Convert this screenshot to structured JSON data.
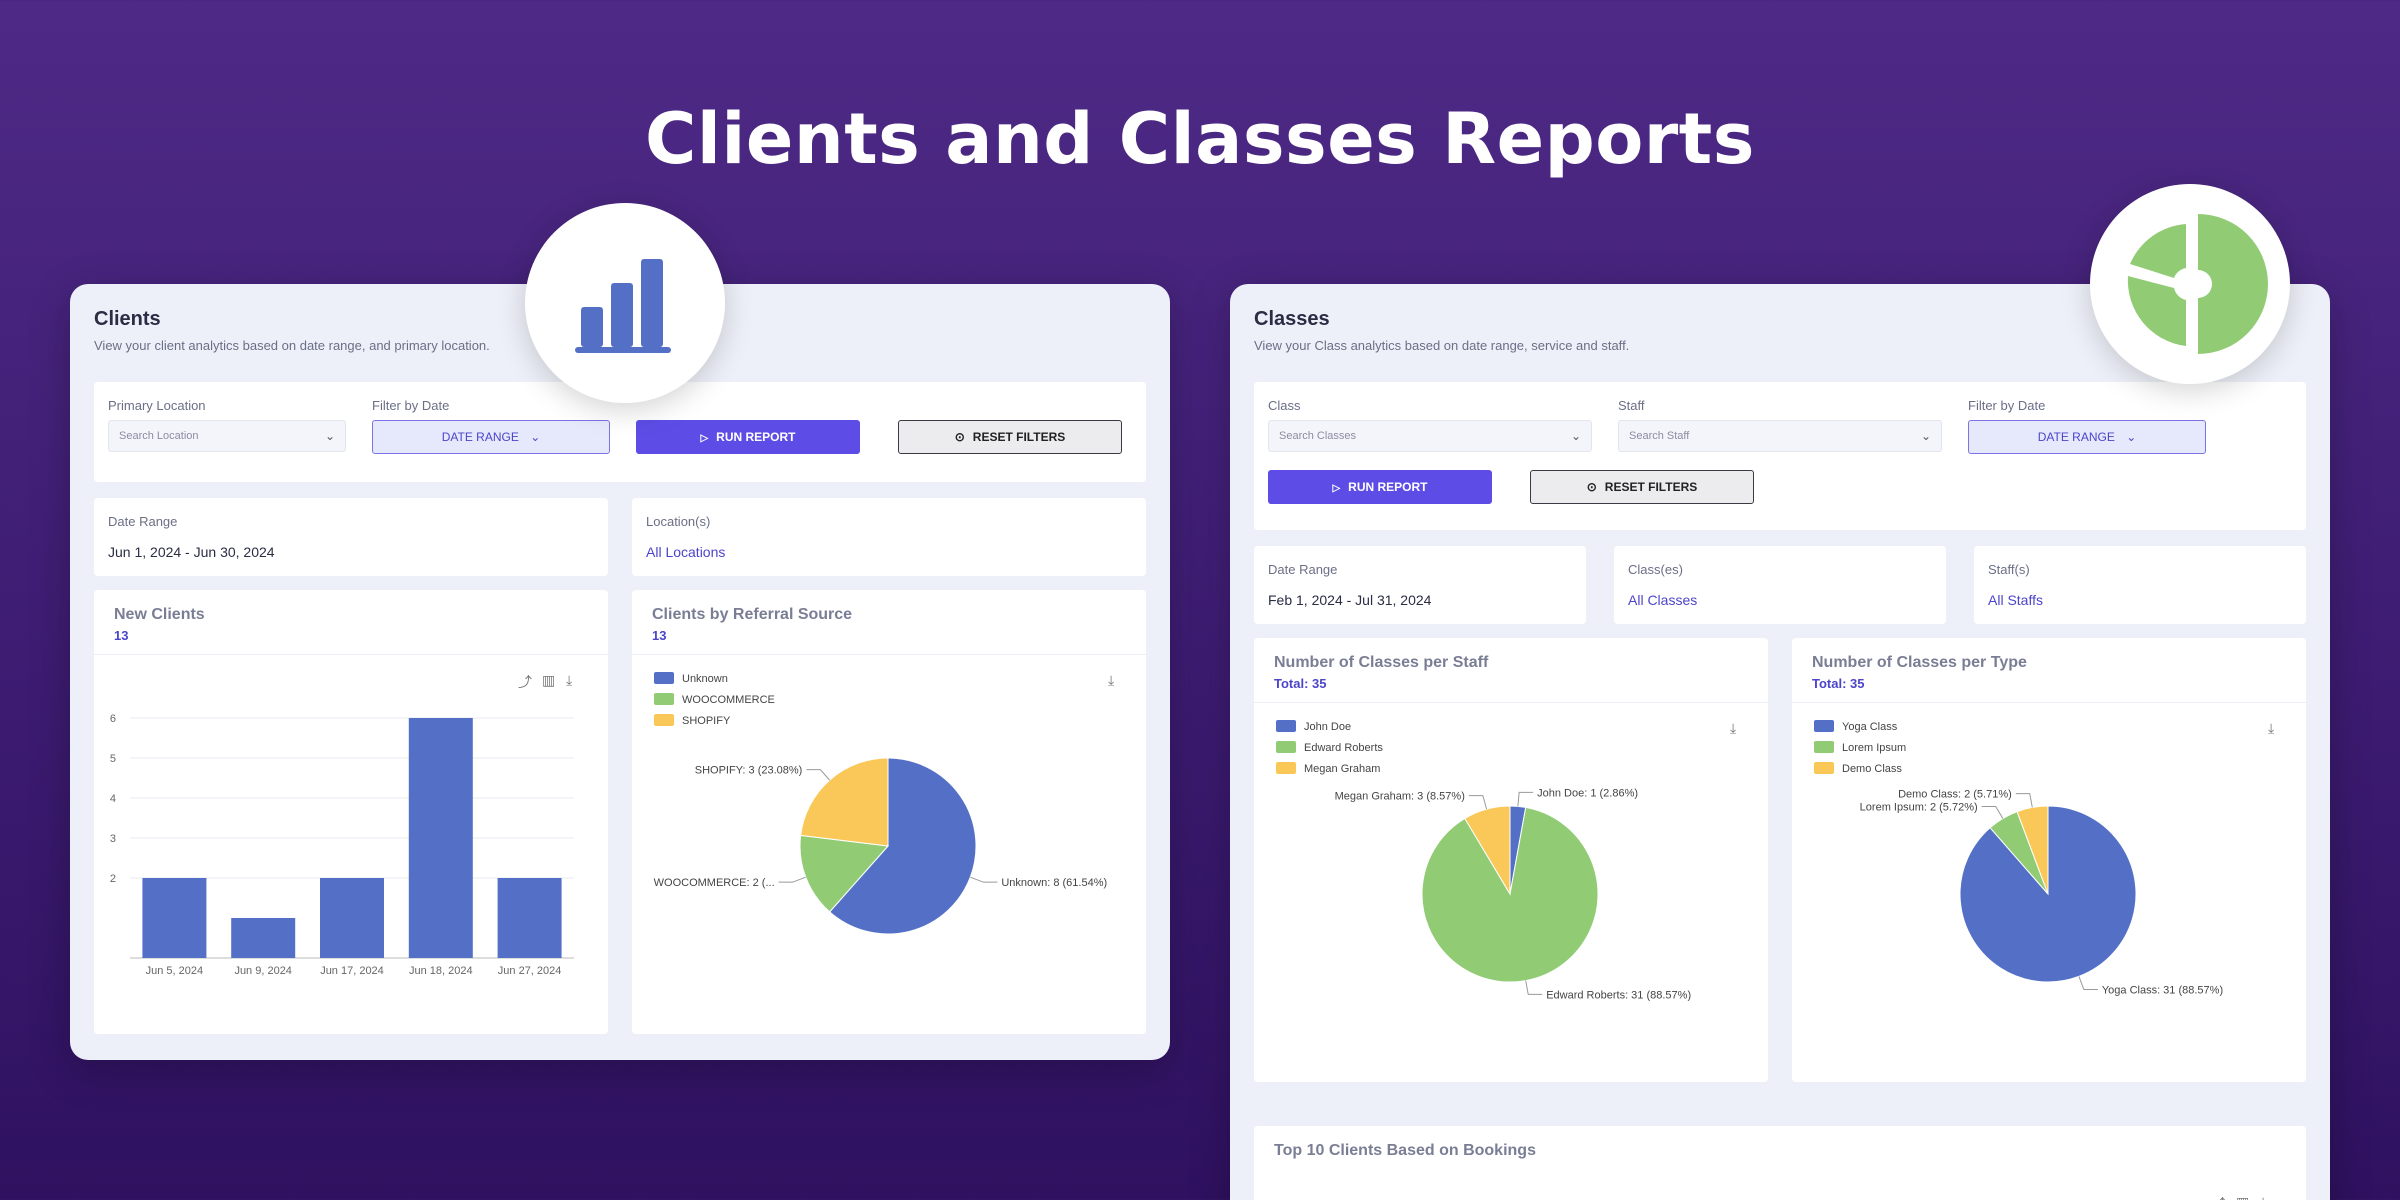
{
  "hero": {
    "title": "Clients and Classes Reports"
  },
  "colors": {
    "blue": "#5470c6",
    "green": "#91cc75",
    "yellow": "#fac858",
    "accent": "#5d4de6"
  },
  "clients": {
    "title": "Clients",
    "subtitle": "View your client analytics based on date range, and primary location.",
    "filters": {
      "primary_location_label": "Primary Location",
      "primary_location_placeholder": "Search Location",
      "filter_by_date_label": "Filter by Date",
      "date_range_button": "DATE RANGE",
      "run_report": "RUN REPORT",
      "reset_filters": "RESET FILTERS"
    },
    "date_range": {
      "label": "Date Range",
      "value": "Jun 1, 2024 - Jun 30, 2024"
    },
    "locations": {
      "label": "Location(s)",
      "value": "All Locations"
    },
    "new_clients": {
      "title": "New Clients",
      "count": "13"
    },
    "referral": {
      "title": "Clients by Referral Source",
      "count": "13"
    }
  },
  "classes": {
    "title": "Classes",
    "subtitle": "View your Class analytics based on date range, service and staff.",
    "filters": {
      "class_label": "Class",
      "class_placeholder": "Search Classes",
      "staff_label": "Staff",
      "staff_placeholder": "Search Staff",
      "filter_by_date_label": "Filter by Date",
      "date_range_button": "DATE RANGE",
      "run_report": "RUN REPORT",
      "reset_filters": "RESET FILTERS"
    },
    "date_range": {
      "label": "Date Range",
      "value": "Feb 1, 2024 - Jul 31, 2024"
    },
    "classes_sel": {
      "label": "Class(es)",
      "value": "All Classes"
    },
    "staffs_sel": {
      "label": "Staff(s)",
      "value": "All Staffs"
    },
    "per_staff": {
      "title": "Number of Classes per Staff",
      "total": "Total: 35"
    },
    "per_type": {
      "title": "Number of Classes per Type",
      "total": "Total: 35"
    },
    "top_clients": {
      "title": "Top 10 Clients Based on Bookings"
    }
  },
  "chart_data": [
    {
      "type": "bar",
      "title": "New Clients",
      "categories": [
        "Jun 5, 2024",
        "Jun 9, 2024",
        "Jun 17, 2024",
        "Jun 18, 2024",
        "Jun 27, 2024"
      ],
      "values": [
        2,
        1,
        2,
        6,
        2
      ],
      "ylim": [
        0,
        6
      ],
      "yticks": [
        2,
        3,
        4,
        5,
        6
      ],
      "grid": true
    },
    {
      "type": "pie",
      "title": "Clients by Referral Source",
      "legend": [
        "Unknown",
        "WOOCOMMERCE",
        "SHOPIFY"
      ],
      "slices": [
        {
          "name": "Unknown",
          "value": 8,
          "label": "Unknown: 8 (61.54%)"
        },
        {
          "name": "WOOCOMMERCE",
          "value": 2,
          "label": "WOOCOMMERCE: 2 (..."
        },
        {
          "name": "SHOPIFY",
          "value": 3,
          "label": "SHOPIFY: 3 (23.08%)"
        }
      ]
    },
    {
      "type": "pie",
      "title": "Number of Classes per Staff",
      "legend": [
        "John Doe",
        "Edward Roberts",
        "Megan Graham"
      ],
      "slices": [
        {
          "name": "John Doe",
          "value": 1,
          "label": "John Doe: 1 (2.86%)"
        },
        {
          "name": "Edward Roberts",
          "value": 31,
          "label": "Edward Roberts: 31 (88.57%)"
        },
        {
          "name": "Megan Graham",
          "value": 3,
          "label": "Megan Graham: 3 (8.57%)"
        }
      ]
    },
    {
      "type": "pie",
      "title": "Number of Classes per Type",
      "legend": [
        "Yoga Class",
        "Lorem Ipsum",
        "Demo Class"
      ],
      "slices": [
        {
          "name": "Yoga Class",
          "value": 31,
          "label": "Yoga Class: 31 (88.57%)"
        },
        {
          "name": "Lorem Ipsum",
          "value": 2,
          "label": "Lorem Ipsum: 2 (5.72%)"
        },
        {
          "name": "Demo Class",
          "value": 2,
          "label": "Demo Class: 2 (5.71%)"
        }
      ]
    }
  ]
}
